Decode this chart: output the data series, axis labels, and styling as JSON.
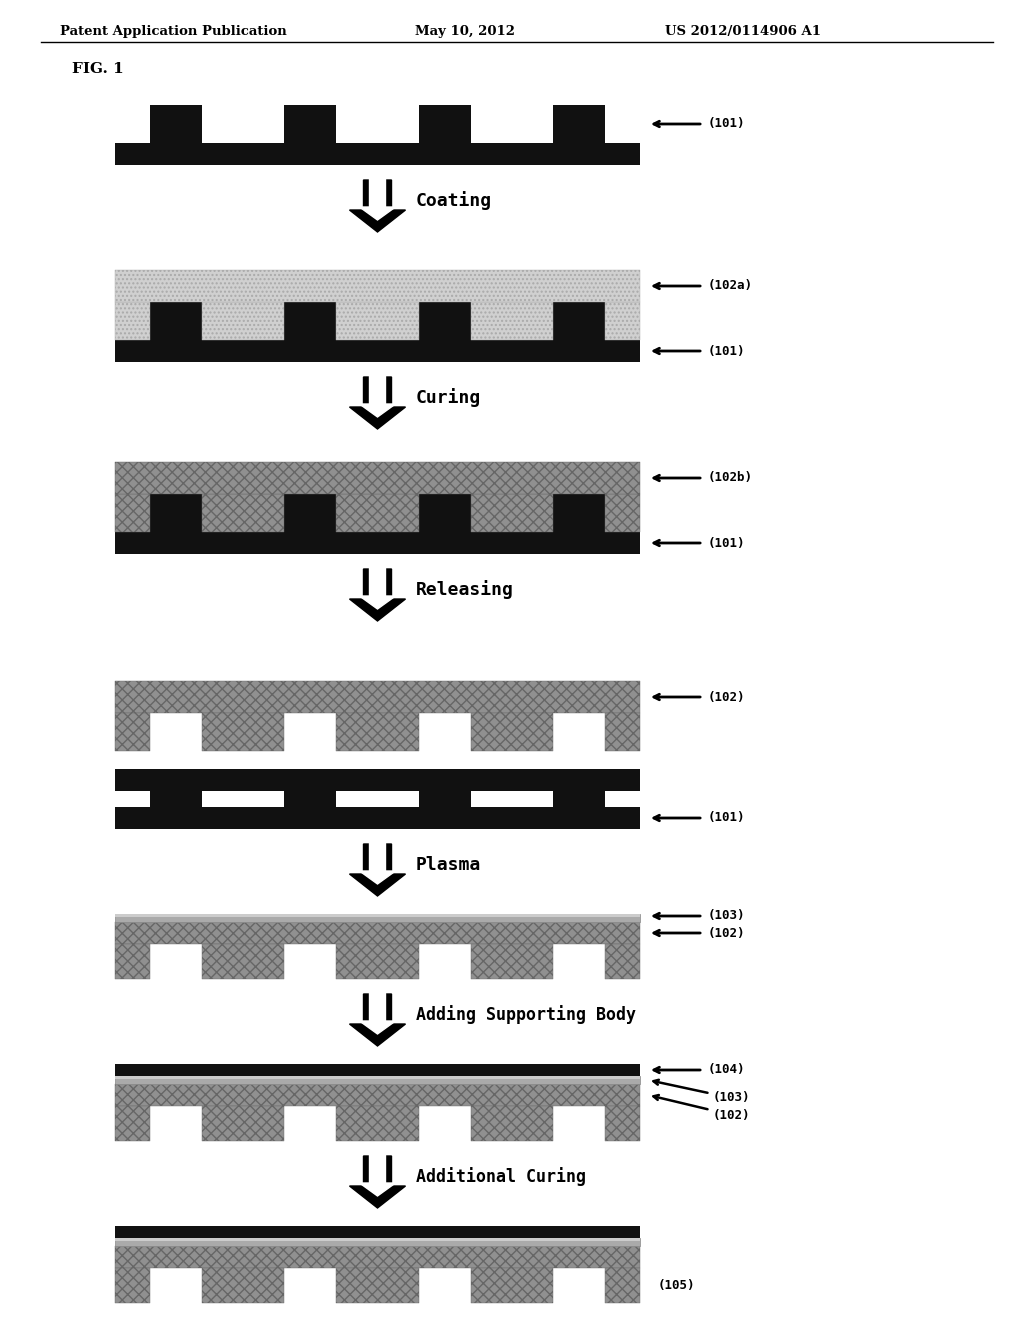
{
  "header_left": "Patent Application Publication",
  "header_mid": "May 10, 2012",
  "header_right": "US 2012/0114906 A1",
  "fig_label": "FIG. 1",
  "bg_color": "#ffffff",
  "mold_color": "#111111",
  "resin_dot_color": "#cccccc",
  "resin_cured_color": "#888888",
  "thin_layer_color": "#666666",
  "support_color": "#111111",
  "fig_width": 10.24,
  "fig_height": 13.2
}
